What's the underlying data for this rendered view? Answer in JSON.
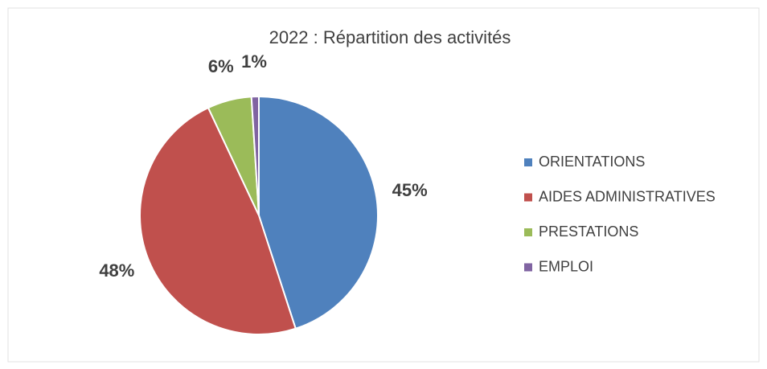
{
  "chart_data": {
    "type": "pie",
    "title": "2022 : Répartition des activités",
    "categories": [
      "ORIENTATIONS",
      "AIDES ADMINISTRATIVES",
      "PRESTATIONS",
      "EMPLOI"
    ],
    "values": [
      45,
      48,
      6,
      1
    ],
    "value_labels": [
      "45%",
      "48%",
      "6%",
      "1%"
    ],
    "colors": [
      "#4f81bd",
      "#c0504d",
      "#9bbb59",
      "#8064a2"
    ],
    "legend": "right"
  }
}
